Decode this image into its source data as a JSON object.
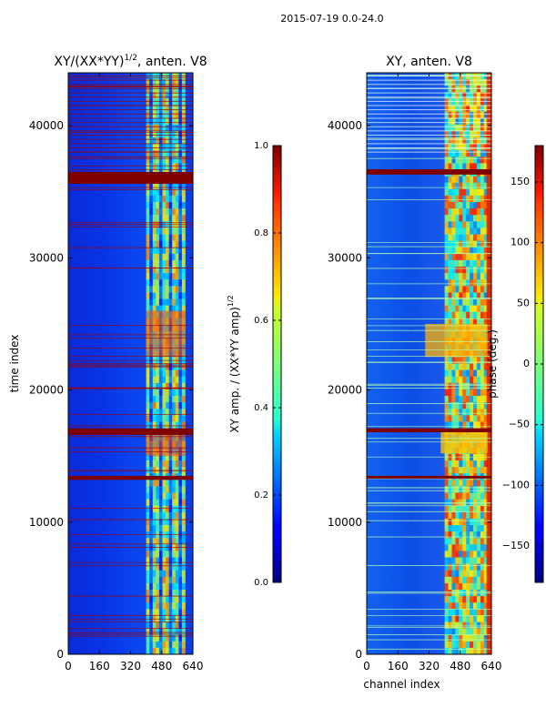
{
  "figure": {
    "suptitle": "2015-07-19 0.0-24.0",
    "shared_xlabel": "channel index"
  },
  "chart_data": [
    {
      "type": "heatmap",
      "title": "XY/(XX*YY)",
      "title_sup": "1/2",
      "title_suffix": ", anten. V8",
      "xlabel": "",
      "ylabel": "time index",
      "xlim": [
        0,
        640
      ],
      "ylim": [
        0,
        44000
      ],
      "xticks": [
        0,
        160,
        320,
        480,
        640
      ],
      "yticks": [
        0,
        10000,
        20000,
        30000,
        40000
      ],
      "colorbar": {
        "label": "XY amp. / (XX*YY amp)",
        "label_sup": "1/2",
        "range": [
          0,
          1
        ],
        "ticks": [
          "0.0",
          "0.2",
          "0.4",
          "0.6",
          "0.8",
          "1.0"
        ],
        "tick_values": [
          0,
          0.2,
          0.4,
          0.6,
          0.8,
          1.0
        ]
      },
      "saturated_bands": [
        [
          35600,
          36500
        ],
        [
          16600,
          17100
        ],
        [
          13200,
          13500
        ]
      ],
      "active_channel_range": [
        400,
        600
      ]
    },
    {
      "type": "heatmap",
      "title": "XY, anten. V8",
      "xlabel": "channel index",
      "ylabel": "",
      "xlim": [
        0,
        640
      ],
      "ylim": [
        0,
        44000
      ],
      "xticks": [
        0,
        160,
        320,
        480,
        640
      ],
      "yticks": [
        0,
        10000,
        20000,
        30000,
        40000
      ],
      "colorbar": {
        "label": "phase (deg.)",
        "range": [
          -180,
          180
        ],
        "ticks": [
          "150",
          "100",
          "50",
          "0",
          "−50",
          "−100",
          "−150"
        ],
        "tick_values": [
          150,
          100,
          50,
          0,
          -50,
          -100,
          -150
        ]
      },
      "saturated_bands": [
        [
          36300,
          36700
        ],
        [
          16800,
          17100
        ],
        [
          13300,
          13500
        ]
      ],
      "active_channel_range": [
        400,
        620
      ]
    }
  ]
}
